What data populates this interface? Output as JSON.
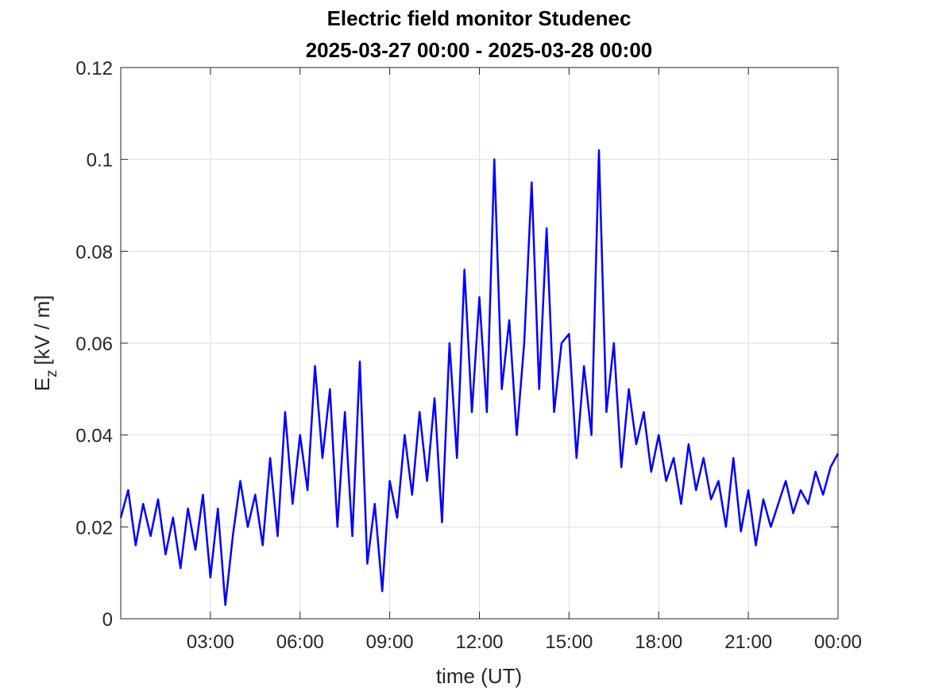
{
  "chart_data": {
    "type": "line",
    "title": "Electric field monitor Studenec",
    "subtitle": "2025-03-27 00:00 - 2025-03-28 00:00",
    "xlabel": "time (UT)",
    "ylabel": {
      "symbol": "E",
      "subscript": "z",
      "unit": "[kV / m]"
    },
    "xlim": [
      0,
      24
    ],
    "xticks": [
      {
        "value": 3,
        "label": "03:00"
      },
      {
        "value": 6,
        "label": "06:00"
      },
      {
        "value": 9,
        "label": "09:00"
      },
      {
        "value": 12,
        "label": "12:00"
      },
      {
        "value": 15,
        "label": "15:00"
      },
      {
        "value": 18,
        "label": "18:00"
      },
      {
        "value": 21,
        "label": "21:00"
      },
      {
        "value": 24,
        "label": "00:00"
      }
    ],
    "ylim": [
      0,
      0.12
    ],
    "yticks": [
      0,
      0.02,
      0.04,
      0.06,
      0.08,
      0.1,
      0.12
    ],
    "grid": true,
    "x": [
      0,
      0.25,
      0.5,
      0.75,
      1,
      1.25,
      1.5,
      1.75,
      2,
      2.25,
      2.5,
      2.75,
      3,
      3.25,
      3.5,
      3.75,
      4,
      4.25,
      4.5,
      4.75,
      5,
      5.25,
      5.5,
      5.75,
      6,
      6.25,
      6.5,
      6.75,
      7,
      7.25,
      7.5,
      7.75,
      8,
      8.25,
      8.5,
      8.75,
      9,
      9.25,
      9.5,
      9.75,
      10,
      10.25,
      10.5,
      10.75,
      11,
      11.25,
      11.5,
      11.75,
      12,
      12.25,
      12.5,
      12.75,
      13,
      13.25,
      13.5,
      13.75,
      14,
      14.25,
      14.5,
      14.75,
      15,
      15.25,
      15.5,
      15.75,
      16,
      16.25,
      16.5,
      16.75,
      17,
      17.25,
      17.5,
      17.75,
      18,
      18.25,
      18.5,
      18.75,
      19,
      19.25,
      19.5,
      19.75,
      20,
      20.25,
      20.5,
      20.75,
      21,
      21.25,
      21.5,
      21.75,
      22,
      22.25,
      22.5,
      22.75,
      23,
      23.25,
      23.5,
      23.75,
      24
    ],
    "series": [
      {
        "name": "Ez",
        "color": "#0000ff",
        "values": [
          0.022,
          0.028,
          0.016,
          0.025,
          0.018,
          0.026,
          0.014,
          0.022,
          0.011,
          0.024,
          0.015,
          0.027,
          0.009,
          0.024,
          0.003,
          0.018,
          0.03,
          0.02,
          0.027,
          0.016,
          0.035,
          0.018,
          0.045,
          0.025,
          0.04,
          0.028,
          0.055,
          0.035,
          0.05,
          0.02,
          0.045,
          0.018,
          0.056,
          0.012,
          0.025,
          0.006,
          0.03,
          0.022,
          0.04,
          0.027,
          0.045,
          0.03,
          0.048,
          0.021,
          0.06,
          0.035,
          0.076,
          0.045,
          0.07,
          0.045,
          0.1,
          0.05,
          0.065,
          0.04,
          0.06,
          0.095,
          0.05,
          0.085,
          0.045,
          0.06,
          0.062,
          0.035,
          0.055,
          0.04,
          0.102,
          0.045,
          0.06,
          0.033,
          0.05,
          0.038,
          0.045,
          0.032,
          0.04,
          0.03,
          0.035,
          0.025,
          0.038,
          0.028,
          0.035,
          0.026,
          0.03,
          0.02,
          0.035,
          0.019,
          0.028,
          0.016,
          0.026,
          0.02,
          0.025,
          0.03,
          0.023,
          0.028,
          0.025,
          0.032,
          0.027,
          0.033,
          0.036
        ]
      }
    ]
  }
}
